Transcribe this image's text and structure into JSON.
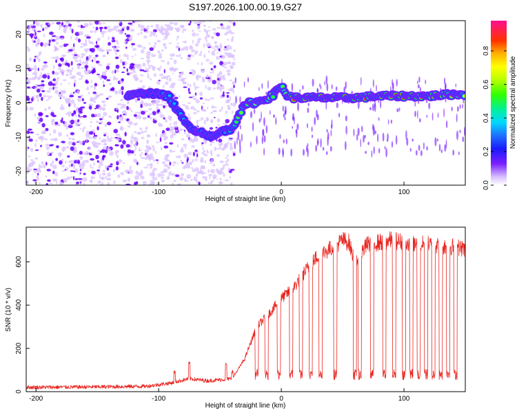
{
  "title": "S197.2026.100.00.19.G27",
  "colors": {
    "spec_purple": "#6a00ff",
    "spec_light": "#d9c2ff",
    "snr_line": "#e8241f"
  },
  "chart_data": [
    {
      "type": "heatmap",
      "name": "spectrogram",
      "xlabel": "Height of straight line (km)",
      "ylabel": "Frequency (Hz)",
      "xlim": [
        -208,
        150
      ],
      "ylim": [
        -24,
        24
      ],
      "xticks": [
        -200,
        -100,
        0,
        100
      ],
      "yticks": [
        -20,
        -10,
        0,
        10,
        20
      ],
      "colorbar": {
        "label": "Normalized spectral amplitude",
        "range": [
          0,
          0.98
        ],
        "ticks": [
          0.0,
          0.2,
          0.4,
          0.6,
          0.8
        ],
        "tick_labels": [
          "0.0",
          "0.2",
          "0.4",
          "0.6",
          "0.8"
        ],
        "colormap": "rainbow (white-violet-blue-cyan-green-yellow-orange-red-magenta)"
      },
      "signal_track": {
        "x": [
          -125,
          -110,
          -100,
          -92,
          -85,
          -78,
          -70,
          -62,
          -55,
          -48,
          -42,
          -38,
          -34,
          -30,
          -26,
          -22,
          -18,
          -14,
          -10,
          -6,
          -3,
          0,
          2,
          5,
          10,
          20,
          40,
          60,
          80,
          100,
          120,
          140,
          150
        ],
        "frequency": [
          2,
          3,
          2.5,
          2,
          -2,
          -6,
          -8,
          -9,
          -10,
          -8,
          -8,
          -6,
          -3,
          -1,
          0,
          0,
          0.5,
          1,
          1.5,
          2.5,
          4,
          5,
          4,
          2,
          1.5,
          1.5,
          1.5,
          1.5,
          2,
          2,
          2,
          2.5,
          2.5
        ],
        "amplitude": [
          0.2,
          0.25,
          0.3,
          0.35,
          0.35,
          0.35,
          0.3,
          0.3,
          0.3,
          0.3,
          0.4,
          0.5,
          0.6,
          0.55,
          0.6,
          0.7,
          0.7,
          0.6,
          0.7,
          0.5,
          0.55,
          0.6,
          0.55,
          0.65,
          0.95,
          0.95,
          0.95,
          0.9,
          0.85,
          0.9,
          0.85,
          0.8,
          0.7
        ]
      }
    },
    {
      "type": "line",
      "name": "snr",
      "xlabel": "Height of straight line (km)",
      "ylabel": "SNR (10 * v/v)",
      "xlim": [
        -208,
        150
      ],
      "ylim": [
        0,
        760
      ],
      "xticks": [
        -200,
        -100,
        0,
        100
      ],
      "yticks": [
        0,
        200,
        400,
        600
      ],
      "envelope": {
        "x": [
          -208,
          -150,
          -110,
          -90,
          -75,
          -60,
          -40,
          -30,
          -20,
          -10,
          0,
          10,
          20,
          30,
          40,
          50,
          55,
          60,
          70,
          80,
          90,
          100,
          110,
          120,
          130,
          140,
          150
        ],
        "y": [
          20,
          22,
          25,
          40,
          60,
          50,
          60,
          150,
          300,
          360,
          430,
          480,
          560,
          630,
          660,
          700,
          690,
          600,
          680,
          690,
          700,
          690,
          680,
          680,
          670,
          670,
          660
        ]
      },
      "dropouts": [
        -20,
        -12,
        -2,
        8,
        16,
        24,
        32,
        44,
        60,
        64,
        74,
        84,
        92,
        100,
        106,
        112,
        118,
        124,
        130,
        136,
        142
      ],
      "dropout_level": 80,
      "spikes": [
        [
          -75,
          130
        ],
        [
          -87,
          90
        ],
        [
          -45,
          125
        ],
        [
          -40,
          95
        ]
      ]
    }
  ]
}
